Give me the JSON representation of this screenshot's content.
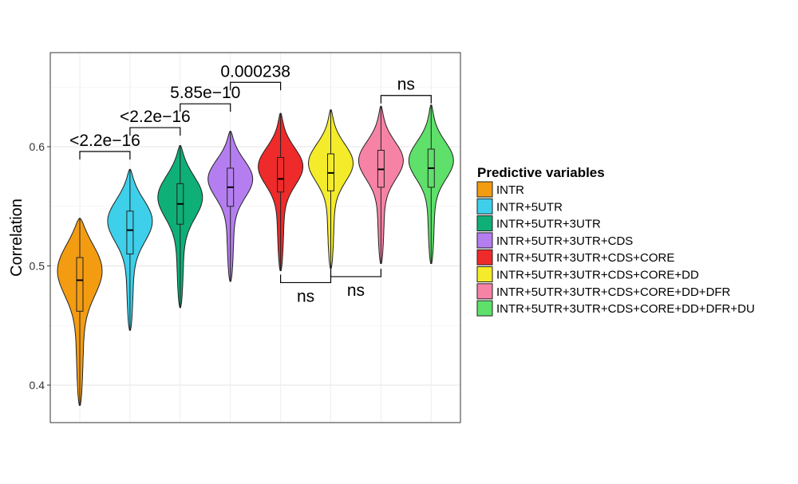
{
  "chart_data": {
    "type": "violin",
    "title": "",
    "xlabel": "",
    "ylabel": "Correlation",
    "ylim": [
      0.37,
      0.67
    ],
    "yticks": [
      0.4,
      0.5,
      0.6
    ],
    "ytick_labels": [
      "0.4",
      "0.5",
      "0.6"
    ],
    "grid": true,
    "legend": {
      "title": "Predictive variables",
      "placement": "right"
    },
    "series": [
      {
        "name": "INTR",
        "color": "#F39C12",
        "min": 0.383,
        "max": 0.54,
        "q1": 0.462,
        "median": 0.488,
        "q3": 0.507,
        "mode": 0.5,
        "spread": 0.022
      },
      {
        "name": "INTR+5UTR",
        "color": "#3ECFEA",
        "min": 0.446,
        "max": 0.581,
        "q1": 0.51,
        "median": 0.53,
        "q3": 0.546,
        "mode": 0.54,
        "spread": 0.018
      },
      {
        "name": "INTR+5UTR+3UTR",
        "color": "#0FAF78",
        "min": 0.465,
        "max": 0.601,
        "q1": 0.535,
        "median": 0.552,
        "q3": 0.569,
        "mode": 0.56,
        "spread": 0.018
      },
      {
        "name": "INTR+5UTR+3UTR+CDS",
        "color": "#B57EF0",
        "min": 0.487,
        "max": 0.613,
        "q1": 0.55,
        "median": 0.566,
        "q3": 0.582,
        "mode": 0.575,
        "spread": 0.016
      },
      {
        "name": "INTR+5UTR+3UTR+CDS+CORE",
        "color": "#EE2A2A",
        "min": 0.496,
        "max": 0.628,
        "q1": 0.562,
        "median": 0.573,
        "q3": 0.591,
        "mode": 0.585,
        "spread": 0.016
      },
      {
        "name": "INTR+5UTR+3UTR+CDS+CORE+DD",
        "color": "#F4EB2A",
        "min": 0.498,
        "max": 0.631,
        "q1": 0.563,
        "median": 0.578,
        "q3": 0.594,
        "mode": 0.588,
        "spread": 0.016
      },
      {
        "name": "INTR+5UTR+3UTR+CDS+CORE+DD+DFR",
        "color": "#F683A6",
        "min": 0.502,
        "max": 0.634,
        "q1": 0.566,
        "median": 0.581,
        "q3": 0.597,
        "mode": 0.59,
        "spread": 0.016
      },
      {
        "name": "INTR+5UTR+3UTR+CDS+CORE+DD+DFR+DU",
        "color": "#5EE06A",
        "min": 0.502,
        "max": 0.635,
        "q1": 0.566,
        "median": 0.582,
        "q3": 0.598,
        "mode": 0.59,
        "spread": 0.016
      }
    ],
    "comparisons": [
      {
        "from": 0,
        "to": 1,
        "label": "<2.2e−16",
        "y": 0.596,
        "side": "above"
      },
      {
        "from": 1,
        "to": 2,
        "label": "<2.2e−16",
        "y": 0.616,
        "side": "above"
      },
      {
        "from": 2,
        "to": 3,
        "label": "5.85e−10",
        "y": 0.636,
        "side": "above"
      },
      {
        "from": 3,
        "to": 4,
        "label": "0.000238",
        "y": 0.654,
        "side": "above"
      },
      {
        "from": 4,
        "to": 5,
        "label": "ns",
        "y": 0.486,
        "side": "below"
      },
      {
        "from": 5,
        "to": 6,
        "label": "ns",
        "y": 0.491,
        "side": "below"
      },
      {
        "from": 6,
        "to": 7,
        "label": "ns",
        "y": 0.643,
        "side": "above"
      }
    ]
  }
}
